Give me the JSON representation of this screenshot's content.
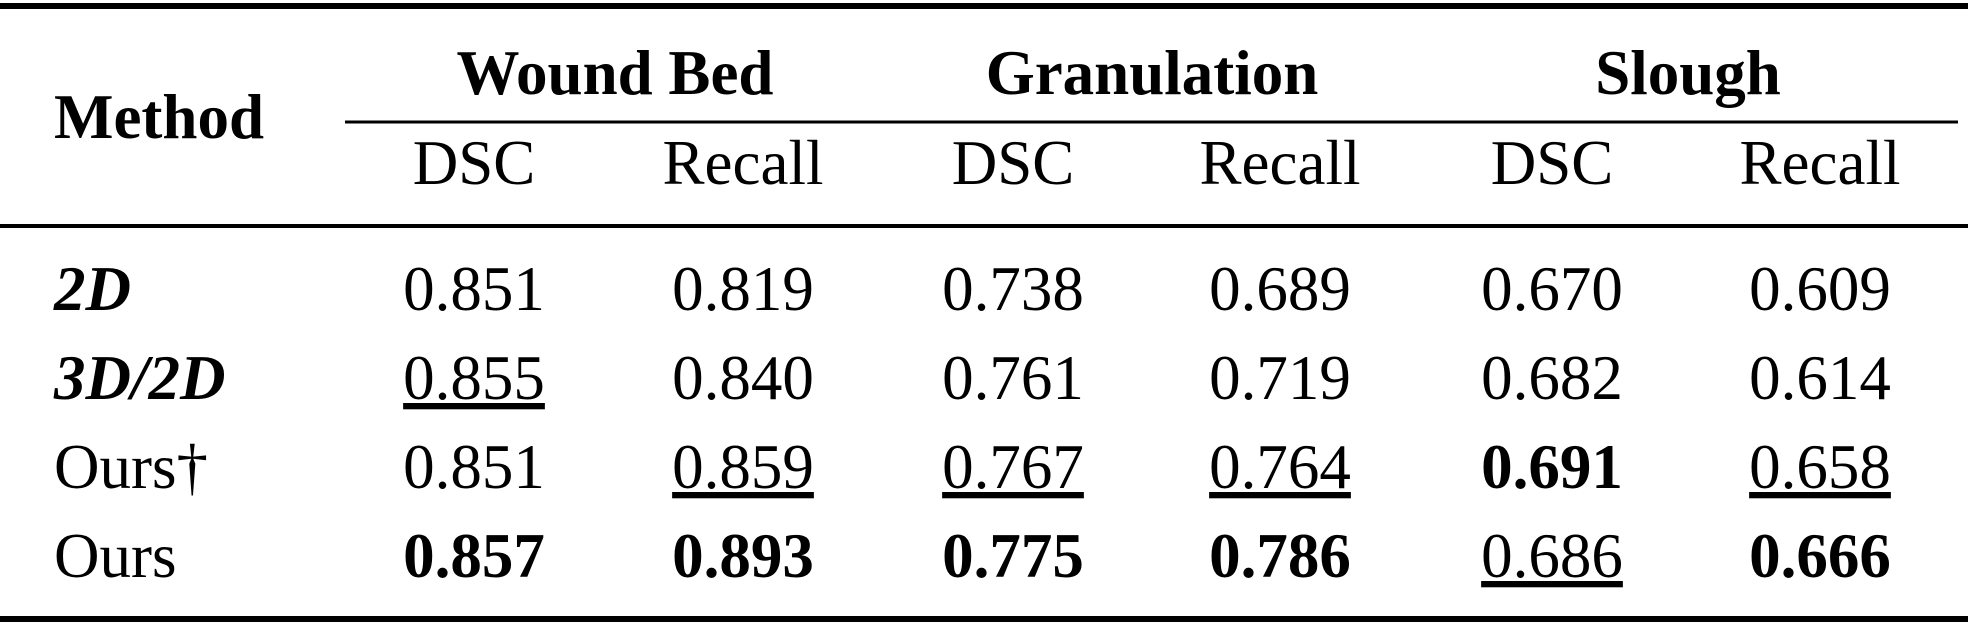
{
  "table": {
    "header": {
      "method": "Method",
      "groups": [
        {
          "name": "Wound Bed",
          "columns": [
            "DSC",
            "Recall"
          ]
        },
        {
          "name": "Granulation",
          "columns": [
            "DSC",
            "Recall"
          ]
        },
        {
          "name": "Slough",
          "columns": [
            "DSC",
            "Recall"
          ]
        }
      ]
    },
    "rows": [
      {
        "method": "2D",
        "values": [
          "0.851",
          "0.819",
          "0.738",
          "0.689",
          "0.670",
          "0.609"
        ]
      },
      {
        "method": "3D/2D",
        "values": [
          "0.855",
          "0.840",
          "0.761",
          "0.719",
          "0.682",
          "0.614"
        ]
      },
      {
        "method": "Ours†",
        "values": [
          "0.851",
          "0.859",
          "0.767",
          "0.764",
          "0.691",
          "0.658"
        ]
      },
      {
        "method": "Ours",
        "values": [
          "0.857",
          "0.893",
          "0.775",
          "0.786",
          "0.686",
          "0.666"
        ]
      }
    ]
  }
}
